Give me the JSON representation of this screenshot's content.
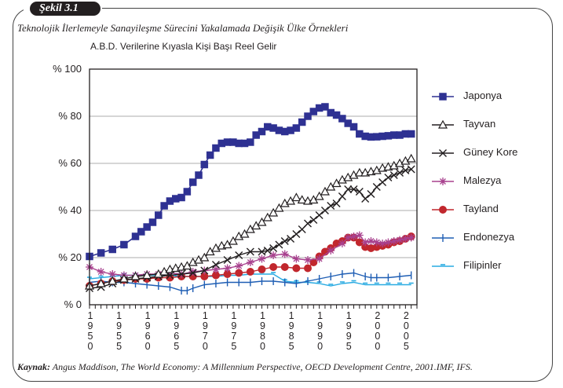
{
  "figure": {
    "badge": "Şekil 3.1",
    "title": "Teknolojik İlerlemeyle Sanayileşme Sürecini Yakalamada Değişik Ülke Örnekleri",
    "source_label": "Kaynak:",
    "source_text": "Angus Maddison, The World Economy: A Millennium Perspective, OECD Development Centre, 2001.IMF, IFS."
  },
  "chart_data": {
    "type": "line",
    "title": "Teknolojik İlerlemeyle Sanayileşme Sürecini Yakalamada Değişik Ülke Örnekleri",
    "ylabel": "A.B.D. Verilerine Kıyasla Kişi Başı Reel Gelir",
    "xlabel": "",
    "xlim": [
      1950,
      2007
    ],
    "ylim": [
      0,
      100
    ],
    "grid": true,
    "legend_position": "right",
    "y_ticks": [
      {
        "value": 0,
        "label": "% 0"
      },
      {
        "value": 20,
        "label": "% 20"
      },
      {
        "value": 40,
        "label": "% 40"
      },
      {
        "value": 60,
        "label": "% 60"
      },
      {
        "value": 80,
        "label": "% 80"
      },
      {
        "value": 100,
        "label": "% 100"
      }
    ],
    "x_ticks": [
      {
        "value": 1950,
        "label": "1950"
      },
      {
        "value": 1955,
        "label": "1955"
      },
      {
        "value": 1960,
        "label": "1960"
      },
      {
        "value": 1965,
        "label": "1965"
      },
      {
        "value": 1970,
        "label": "1970"
      },
      {
        "value": 1975,
        "label": "1975"
      },
      {
        "value": 1980,
        "label": "1980"
      },
      {
        "value": 1985,
        "label": "1985"
      },
      {
        "value": 1990,
        "label": "1990"
      },
      {
        "value": 1995,
        "label": "1995"
      },
      {
        "value": 2000,
        "label": "2000"
      },
      {
        "value": 2005,
        "label": "2005"
      }
    ],
    "series": [
      {
        "name": "Japonya",
        "color": "#2e3192",
        "marker": "square",
        "x": [
          1950,
          1952,
          1954,
          1956,
          1958,
          1959,
          1960,
          1961,
          1962,
          1963,
          1964,
          1965,
          1966,
          1967,
          1968,
          1969,
          1970,
          1971,
          1972,
          1973,
          1974,
          1975,
          1976,
          1977,
          1978,
          1979,
          1980,
          1981,
          1982,
          1983,
          1984,
          1985,
          1986,
          1987,
          1988,
          1989,
          1990,
          1991,
          1992,
          1993,
          1994,
          1995,
          1996,
          1997,
          1998,
          1999,
          2000,
          2001,
          2002,
          2003,
          2004,
          2005,
          2006
        ],
        "values": [
          20.5,
          22,
          23.5,
          25.5,
          29,
          31,
          33,
          35,
          38,
          42,
          44,
          45,
          45.5,
          48,
          52,
          55,
          59.5,
          63.5,
          66.5,
          68.5,
          69,
          69,
          68.5,
          68.5,
          69,
          72,
          73.5,
          75.5,
          75,
          74,
          73.5,
          74,
          75,
          77.5,
          80,
          82,
          83.5,
          84,
          81.5,
          80.5,
          79,
          77,
          75.5,
          72.5,
          71.5,
          71.2,
          71.3,
          71.5,
          71.7,
          72,
          72,
          72.5,
          72.5
        ]
      },
      {
        "name": "Tayvan",
        "color": "#231f20",
        "marker": "triangle",
        "x": [
          1950,
          1952,
          1954,
          1956,
          1958,
          1960,
          1962,
          1963,
          1964,
          1965,
          1966,
          1967,
          1968,
          1969,
          1970,
          1971,
          1972,
          1973,
          1974,
          1975,
          1976,
          1977,
          1978,
          1979,
          1980,
          1981,
          1982,
          1983,
          1984,
          1985,
          1986,
          1987,
          1988,
          1989,
          1990,
          1991,
          1992,
          1993,
          1994,
          1995,
          1996,
          1997,
          1998,
          1999,
          2000,
          2001,
          2002,
          2003,
          2004,
          2005,
          2006
        ],
        "values": [
          8,
          9,
          10,
          11,
          12,
          12.5,
          13,
          14,
          15,
          15.5,
          16,
          16.5,
          18,
          19,
          20,
          22.5,
          24,
          25,
          25.5,
          27,
          29,
          30,
          32,
          33.5,
          35,
          37,
          39,
          41,
          43,
          44,
          45.5,
          44.5,
          44,
          44.5,
          46,
          48,
          50,
          51.5,
          53,
          54,
          55,
          56,
          56,
          56.5,
          57,
          58,
          58.5,
          59,
          60,
          61,
          62
        ]
      },
      {
        "name": "Güney Kore",
        "color": "#231f20",
        "marker": "x",
        "x": [
          1950,
          1952,
          1954,
          1956,
          1958,
          1960,
          1962,
          1964,
          1966,
          1968,
          1970,
          1972,
          1974,
          1976,
          1978,
          1980,
          1981,
          1982,
          1983,
          1984,
          1985,
          1986,
          1987,
          1988,
          1989,
          1990,
          1991,
          1992,
          1993,
          1994,
          1995,
          1996,
          1997,
          1998,
          1999,
          2000,
          2001,
          2002,
          2003,
          2004,
          2005,
          2006
        ],
        "values": [
          7,
          7.5,
          9,
          10.5,
          11,
          11.5,
          12,
          12.5,
          13,
          13.5,
          14.5,
          17,
          19,
          21,
          22.5,
          22.5,
          23,
          24,
          25.5,
          27,
          28,
          30,
          32,
          34.5,
          36,
          38,
          40,
          42,
          43,
          46,
          49,
          49,
          48,
          45,
          47,
          50,
          52,
          54,
          55,
          56,
          57,
          57.5
        ]
      },
      {
        "name": "Malezya",
        "color": "#a8418e",
        "marker": "asterisk",
        "x": [
          1950,
          1952,
          1954,
          1956,
          1958,
          1960,
          1962,
          1964,
          1966,
          1968,
          1970,
          1972,
          1974,
          1976,
          1978,
          1980,
          1982,
          1984,
          1986,
          1988,
          1990,
          1992,
          1994,
          1995,
          1996,
          1997,
          1998,
          1999,
          2000,
          2001,
          2002,
          2003,
          2004,
          2005,
          2006
        ],
        "values": [
          16,
          14,
          13,
          12.5,
          12.5,
          13,
          13,
          13.5,
          13,
          14,
          14.5,
          15,
          15.5,
          16.5,
          18,
          19.5,
          21,
          21.5,
          19.5,
          19,
          19.5,
          23,
          26,
          28.5,
          29,
          29.5,
          26.5,
          27,
          26.5,
          26,
          26.5,
          27,
          27.5,
          28,
          28.5
        ]
      },
      {
        "name": "Tayland",
        "color": "#c1272d",
        "marker": "circle",
        "x": [
          1950,
          1952,
          1954,
          1956,
          1958,
          1960,
          1962,
          1964,
          1966,
          1968,
          1970,
          1972,
          1974,
          1976,
          1978,
          1980,
          1982,
          1984,
          1986,
          1988,
          1989,
          1990,
          1991,
          1992,
          1993,
          1994,
          1995,
          1996,
          1997,
          1998,
          1999,
          2000,
          2001,
          2002,
          2003,
          2004,
          2005,
          2006
        ],
        "values": [
          8,
          9,
          10,
          10.5,
          11,
          11,
          11.5,
          11.5,
          12,
          12,
          12,
          12.5,
          13,
          13.5,
          14,
          15,
          16,
          16,
          15.5,
          15.5,
          18,
          20.5,
          22.5,
          24,
          26,
          27,
          28.5,
          28.5,
          26.5,
          24.5,
          24,
          24.5,
          25,
          25.5,
          26.5,
          27,
          28,
          29
        ]
      },
      {
        "name": "Endonezya",
        "color": "#1f5eb4",
        "marker": "plus",
        "x": [
          1950,
          1952,
          1954,
          1956,
          1958,
          1960,
          1962,
          1964,
          1966,
          1967,
          1968,
          1970,
          1972,
          1974,
          1976,
          1978,
          1980,
          1982,
          1984,
          1986,
          1988,
          1990,
          1992,
          1994,
          1996,
          1998,
          1999,
          2000,
          2002,
          2004,
          2006
        ],
        "values": [
          9.5,
          10,
          9.5,
          9.5,
          9,
          8.5,
          8,
          7.5,
          6,
          6,
          7,
          8.5,
          9,
          9.5,
          9.5,
          9.5,
          10,
          10,
          9.5,
          9,
          10,
          11,
          12,
          13,
          13.5,
          12,
          11.5,
          11.5,
          11.5,
          12,
          12.5
        ]
      },
      {
        "name": "Filipinler",
        "color": "#29abe2",
        "marker": "dash",
        "x": [
          1950,
          1952,
          1954,
          1956,
          1958,
          1960,
          1962,
          1964,
          1966,
          1968,
          1970,
          1972,
          1974,
          1976,
          1978,
          1980,
          1982,
          1984,
          1986,
          1988,
          1990,
          1992,
          1994,
          1996,
          1998,
          2000,
          2002,
          2004,
          2006
        ],
        "values": [
          11,
          11.5,
          12,
          12.5,
          12.5,
          12.5,
          12.5,
          12.5,
          12,
          12,
          12,
          12,
          12.5,
          12.5,
          13,
          13,
          13,
          10,
          9.5,
          9.5,
          9,
          8,
          9,
          9.5,
          8.5,
          8.5,
          8.5,
          8.5,
          8.5
        ]
      }
    ]
  }
}
